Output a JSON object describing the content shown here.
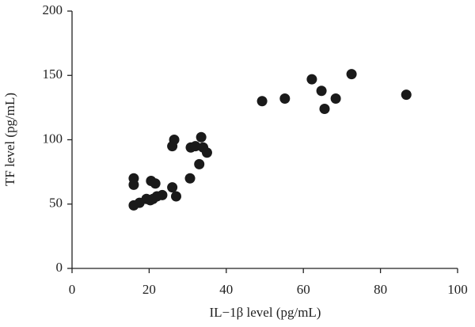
{
  "chart_data": {
    "type": "scatter",
    "x_label": "IL−1β level (pg/mL)",
    "y_label": "TF level (pg/mL)",
    "color": "#1a1a1a",
    "x": [
      16,
      16,
      16,
      17.5,
      19.3,
      20.3,
      20.5,
      21.6,
      21,
      22,
      23.4,
      26,
      26,
      26.5,
      27,
      30.6,
      30.8,
      32,
      33,
      33.5,
      34,
      35,
      49.3,
      55.2,
      62.2,
      64.7,
      65.5,
      68.4,
      72.5,
      86.7
    ],
    "values": [
      70,
      65,
      49,
      51,
      54,
      53,
      68,
      66,
      54,
      56,
      57,
      63,
      95,
      100,
      56,
      70,
      94,
      95,
      81,
      102,
      94,
      90,
      130,
      132,
      147,
      138,
      124,
      132,
      151,
      135
    ],
    "xlim": [
      0,
      100
    ],
    "xticks": [
      0,
      20,
      40,
      60,
      80,
      100
    ],
    "ylim": [
      0,
      200
    ],
    "yticks": [
      0,
      50,
      100,
      150,
      200
    ]
  }
}
